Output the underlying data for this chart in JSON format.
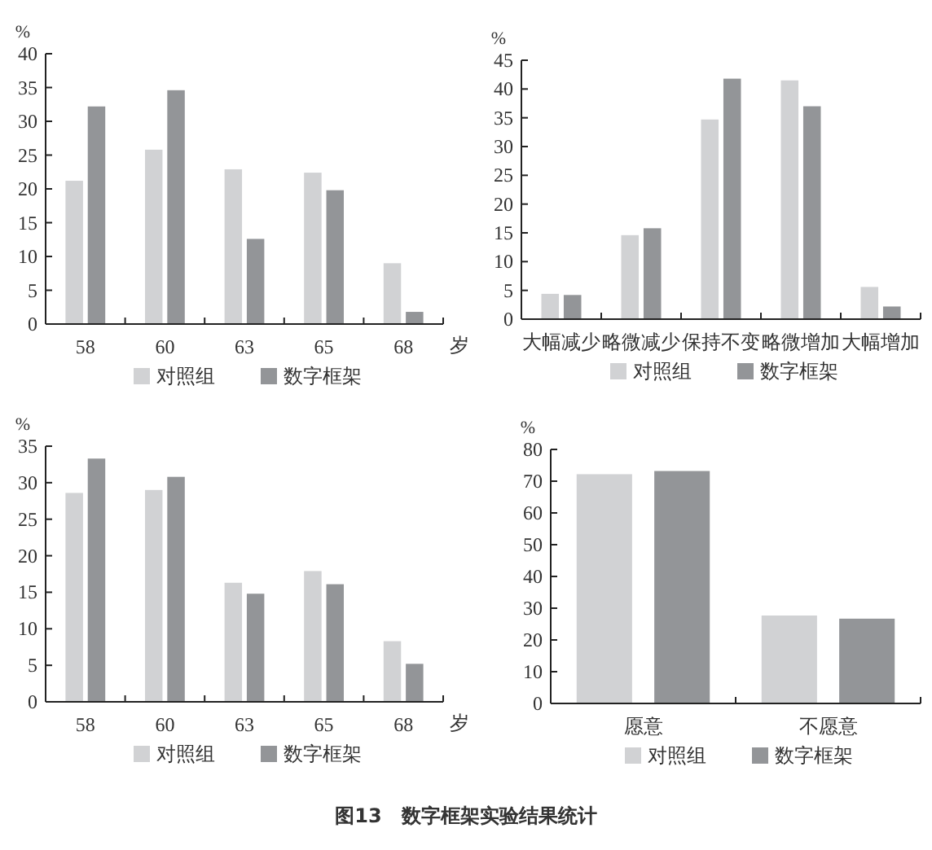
{
  "chart_data": [
    {
      "type": "bar",
      "ylabel": "%",
      "xlabel": "岁",
      "categories": [
        "58",
        "60",
        "63",
        "65",
        "68"
      ],
      "ylim": [
        0,
        40
      ],
      "yticks": [
        0,
        5,
        10,
        15,
        20,
        25,
        30,
        35,
        40
      ],
      "legend": "bottom",
      "series": [
        {
          "name": "对照组",
          "color": "#d1d2d4",
          "values": [
            21.2,
            25.8,
            22.9,
            22.4,
            9.0
          ]
        },
        {
          "name": "数字框架",
          "color": "#939598",
          "values": [
            32.2,
            34.6,
            12.6,
            19.8,
            1.8
          ]
        }
      ]
    },
    {
      "type": "bar",
      "ylabel": "%",
      "categories": [
        "大幅减少",
        "略微减少",
        "保持不变",
        "略微增加",
        "大幅增加"
      ],
      "ylim": [
        0,
        45
      ],
      "yticks": [
        0,
        5,
        10,
        15,
        20,
        25,
        30,
        35,
        40,
        45
      ],
      "legend": "bottom",
      "series": [
        {
          "name": "对照组",
          "color": "#d1d2d4",
          "values": [
            4.4,
            14.6,
            34.7,
            41.5,
            5.6
          ]
        },
        {
          "name": "数字框架",
          "color": "#939598",
          "values": [
            4.2,
            15.8,
            41.8,
            37.0,
            2.2
          ]
        }
      ]
    },
    {
      "type": "bar",
      "ylabel": "%",
      "xlabel": "岁",
      "categories": [
        "58",
        "60",
        "63",
        "65",
        "68"
      ],
      "ylim": [
        0,
        35
      ],
      "yticks": [
        0,
        5,
        10,
        15,
        20,
        25,
        30,
        35
      ],
      "legend": "bottom",
      "series": [
        {
          "name": "对照组",
          "color": "#d1d2d4",
          "values": [
            28.6,
            29.0,
            16.3,
            17.9,
            8.3
          ]
        },
        {
          "name": "数字框架",
          "color": "#939598",
          "values": [
            33.3,
            30.8,
            14.8,
            16.1,
            5.2
          ]
        }
      ]
    },
    {
      "type": "bar",
      "ylabel": "%",
      "categories": [
        "愿意",
        "不愿意"
      ],
      "ylim": [
        0,
        80
      ],
      "yticks": [
        0,
        10,
        20,
        30,
        40,
        50,
        60,
        70,
        80
      ],
      "legend": "bottom",
      "annotations": [
        "图13　数字框架实验结果统计"
      ],
      "series": [
        {
          "name": "对照组",
          "color": "#d1d2d4",
          "values": [
            72.2,
            27.7
          ]
        },
        {
          "name": "数字框架",
          "color": "#939598",
          "values": [
            73.2,
            26.7
          ]
        }
      ]
    }
  ]
}
